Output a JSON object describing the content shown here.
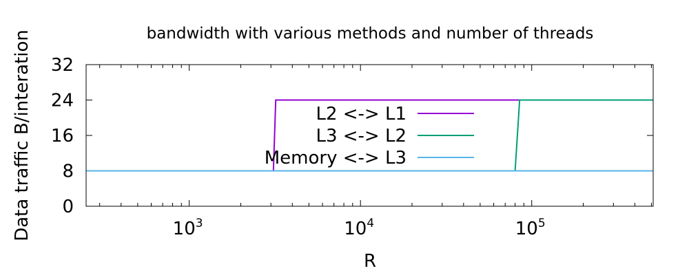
{
  "chart_data": {
    "type": "line",
    "title": "bandwidth with various methods and number of threads",
    "xlabel": "R",
    "ylabel": "Data traffic B/interation",
    "xscale": "log",
    "xlim": [
      250,
      512000
    ],
    "ylim": [
      0,
      32
    ],
    "yticks": [
      0,
      8,
      16,
      24,
      32
    ],
    "xticks": [
      {
        "value": 1000,
        "base": "10",
        "exp": "3"
      },
      {
        "value": 10000,
        "base": "10",
        "exp": "4"
      },
      {
        "value": 100000,
        "base": "10",
        "exp": "5"
      }
    ],
    "grid": false,
    "legend_position": "center",
    "series": [
      {
        "name": "L2 <-> L1",
        "color": "#9400d3",
        "x": [
          250,
          3100,
          3200,
          512000
        ],
        "y": [
          8,
          8,
          24,
          24
        ]
      },
      {
        "name": "L3 <-> L2",
        "color": "#009e73",
        "x": [
          250,
          80000,
          85000,
          512000
        ],
        "y": [
          8,
          8,
          24,
          24
        ]
      },
      {
        "name": "Memory <-> L3",
        "color": "#56b4e9",
        "x": [
          250,
          512000
        ],
        "y": [
          8,
          8
        ]
      }
    ]
  }
}
